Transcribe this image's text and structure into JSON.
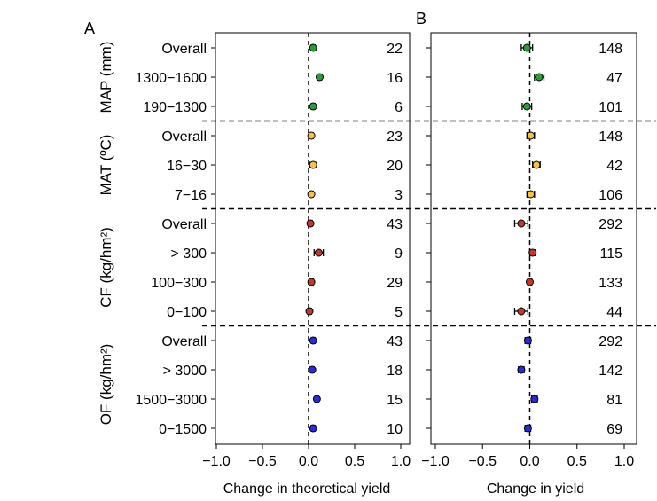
{
  "panels": [
    {
      "letter": "A",
      "xlabel": "Change in theoretical yield",
      "xlim": [
        -1.0,
        1.0
      ],
      "xticks": [
        "−1.0",
        "−0.5",
        "0.0",
        "0.5",
        "1.0"
      ]
    },
    {
      "letter": "B",
      "xlabel": "Change in yield",
      "xlim": [
        -1.0,
        1.0
      ],
      "xticks": [
        "−1.0",
        "−0.5",
        "0.0",
        "0.5",
        "1.0"
      ]
    }
  ],
  "groups": [
    {
      "label": "MAP (mm)",
      "rows": [
        0,
        1,
        2
      ]
    },
    {
      "label": "MAT (ºC)",
      "rows": [
        3,
        4,
        5
      ]
    },
    {
      "label": "CF (kg/hm²)",
      "rows": [
        6,
        7,
        8,
        9
      ]
    },
    {
      "label": "OF (kg/hm²)",
      "rows": [
        10,
        11,
        12,
        13
      ]
    }
  ],
  "rows": [
    "Overall",
    "1300−1600",
    "190−1300",
    "Overall",
    "16−30",
    "7−16",
    "Overall",
    "> 300",
    "100−300",
    "0−100",
    "Overall",
    "> 3000",
    "1500−3000",
    "0−1500"
  ],
  "chart_data": [
    {
      "type": "scatter",
      "panel": "A",
      "xlabel": "Change in theoretical yield",
      "xlim": [
        -1.0,
        1.0
      ],
      "reference_line_x": 0,
      "categories": [
        "Overall",
        "1300−1600",
        "190−1300",
        "Overall",
        "16−30",
        "7−16",
        "Overall",
        "> 300",
        "100−300",
        "0−100",
        "Overall",
        "> 3000",
        "1500−3000",
        "0−1500"
      ],
      "values": [
        0.05,
        0.12,
        0.05,
        0.03,
        0.05,
        0.03,
        0.02,
        0.11,
        0.03,
        0.01,
        0.05,
        0.04,
        0.09,
        0.05
      ],
      "ci_low": [
        0.03,
        0.1,
        0.03,
        0.01,
        0.01,
        0.01,
        0.0,
        0.06,
        0.01,
        -0.01,
        0.03,
        0.02,
        0.07,
        0.03
      ],
      "ci_high": [
        0.07,
        0.14,
        0.07,
        0.05,
        0.09,
        0.05,
        0.04,
        0.16,
        0.05,
        0.03,
        0.07,
        0.06,
        0.11,
        0.07
      ],
      "n": [
        "22",
        "16",
        "6",
        "23",
        "20",
        "3",
        "43",
        "9",
        "29",
        "5",
        "43",
        "18",
        "15",
        "10"
      ],
      "colors": [
        "#2e9b3a",
        "#2e9b3a",
        "#2e9b3a",
        "#f2c14e",
        "#f2c14e",
        "#f2c14e",
        "#c0392b",
        "#c0392b",
        "#c0392b",
        "#c0392b",
        "#2b2bd6",
        "#2b2bd6",
        "#2b2bd6",
        "#2b2bd6"
      ]
    },
    {
      "type": "scatter",
      "panel": "B",
      "xlabel": "Change in yield",
      "xlim": [
        -1.0,
        1.0
      ],
      "reference_line_x": 0,
      "categories": [
        "Overall",
        "1300−1600",
        "190−1300",
        "Overall",
        "16−30",
        "7−16",
        "Overall",
        "> 300",
        "100−300",
        "0−100",
        "Overall",
        "> 3000",
        "1500−3000",
        "0−1500"
      ],
      "values": [
        -0.03,
        0.1,
        -0.03,
        0.01,
        0.07,
        0.01,
        -0.09,
        0.03,
        0.0,
        -0.09,
        -0.02,
        -0.09,
        0.05,
        -0.02
      ],
      "ci_low": [
        -0.09,
        0.05,
        -0.08,
        -0.03,
        0.03,
        -0.03,
        -0.16,
        0.0,
        -0.02,
        -0.16,
        -0.05,
        -0.12,
        0.02,
        -0.05
      ],
      "ci_high": [
        0.03,
        0.15,
        0.02,
        0.05,
        0.11,
        0.05,
        -0.02,
        0.06,
        0.02,
        -0.02,
        0.01,
        -0.06,
        0.08,
        0.01
      ],
      "n": [
        "148",
        "47",
        "101",
        "148",
        "42",
        "106",
        "292",
        "115",
        "133",
        "44",
        "292",
        "142",
        "81",
        "69"
      ],
      "colors": [
        "#2e9b3a",
        "#2e9b3a",
        "#2e9b3a",
        "#f2c14e",
        "#f2c14e",
        "#f2c14e",
        "#c0392b",
        "#c0392b",
        "#c0392b",
        "#c0392b",
        "#2b2bd6",
        "#2b2bd6",
        "#2b2bd6",
        "#2b2bd6"
      ]
    }
  ]
}
